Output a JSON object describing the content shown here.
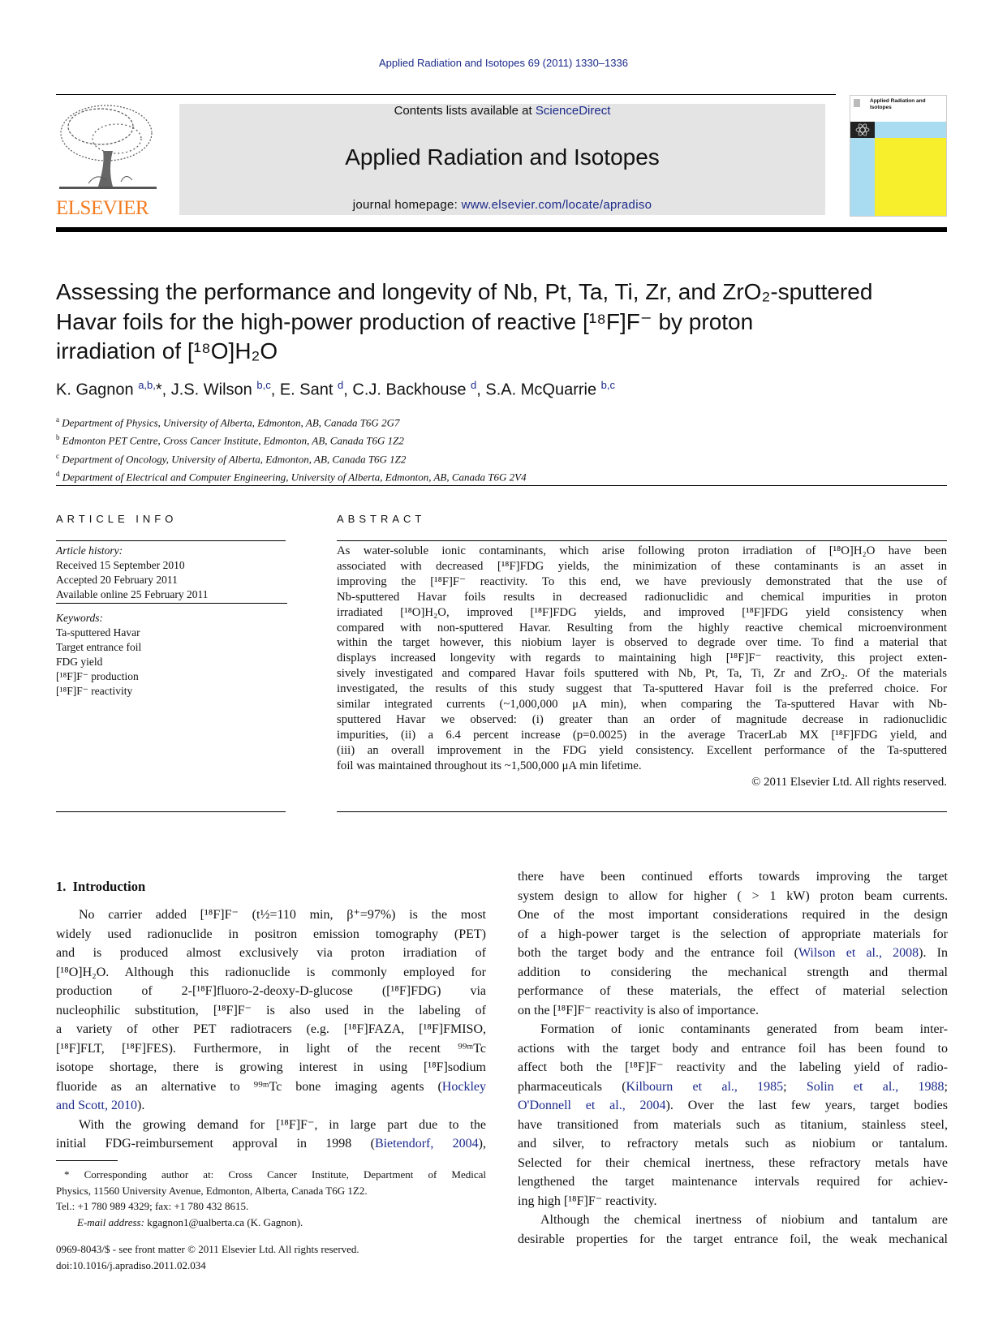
{
  "header": {
    "citation": "Applied Radiation and Isotopes 69 (2011) 1330–1336",
    "contents_prefix": "Contents lists available at ",
    "contents_link": "ScienceDirect",
    "journal_title": "Applied Radiation and Isotopes",
    "homepage_prefix": "journal homepage: ",
    "homepage_link": "www.elsevier.com/locate/apradiso",
    "publisher_logo": "ELSEVIER",
    "cover_title": "Applied Radiation and Isotopes",
    "link_color": "#1b2a8a",
    "logo_color": "#f47c20"
  },
  "article": {
    "title_lines": [
      "Assessing the performance and longevity of Nb, Pt, Ta, Ti, Zr, and ZrO₂-sputtered",
      "Havar foils for the high-power production of reactive [¹⁸F]F⁻ by proton",
      "irradiation of [¹⁸O]H₂O"
    ],
    "authors": [
      {
        "name": "K. Gagnon",
        "sup": "a,b,",
        "sep": "*, "
      },
      {
        "name": "J.S. Wilson",
        "sup": "b,c",
        "sep": ", "
      },
      {
        "name": "E. Sant",
        "sup": "d",
        "sep": ", "
      },
      {
        "name": "C.J. Backhouse",
        "sup": "d",
        "sep": ", "
      },
      {
        "name": "S.A. McQuarrie",
        "sup": "b,c",
        "sep": ""
      }
    ],
    "affiliations": [
      {
        "key": "a",
        "text": "Department of Physics, University of Alberta, Edmonton, AB, Canada T6G 2G7"
      },
      {
        "key": "b",
        "text": "Edmonton PET Centre, Cross Cancer Institute, Edmonton, AB, Canada T6G 1Z2"
      },
      {
        "key": "c",
        "text": "Department of Oncology, University of Alberta, Edmonton, AB, Canada T6G 1Z2"
      },
      {
        "key": "d",
        "text": "Department of Electrical and Computer Engineering, University of Alberta, Edmonton, AB, Canada T6G 2V4"
      }
    ]
  },
  "article_info": {
    "heading": "ARTICLE INFO",
    "history_label": "Article history:",
    "history": [
      "Received 15 September 2010",
      "Accepted 20 February 2011",
      "Available online 25 February 2011"
    ],
    "keywords_label": "Keywords:",
    "keywords": [
      "Ta-sputtered Havar",
      "Target entrance foil",
      "FDG yield",
      "[¹⁸F]F⁻ production",
      "[¹⁸F]F⁻ reactivity"
    ]
  },
  "abstract": {
    "heading": "ABSTRACT",
    "lines": [
      "As water-soluble ionic contaminants, which arise following proton irradiation of [¹⁸O]H₂O have been",
      "associated with decreased [¹⁸F]FDG yields, the minimization of these contaminants is an asset in",
      "improving the [¹⁸F]F⁻ reactivity. To this end, we have previously demonstrated that the use of",
      "Nb-sputtered Havar foils results in decreased radionuclidic and chemical impurities in proton",
      "irradiated [¹⁸O]H₂O, improved [¹⁸F]FDG yields, and improved [¹⁸F]FDG yield consistency when",
      "compared with non-sputtered Havar. Resulting from the highly reactive chemical microenvironment",
      "within the target however, this niobium layer is observed to degrade over time. To find a material that",
      "displays increased longevity with regards to maintaining high [¹⁸F]F⁻ reactivity, this project exten-",
      "sively investigated and compared Havar foils sputtered with Nb, Pt, Ta, Ti, Zr and ZrO₂. Of the materials",
      "investigated, the results of this study suggest that Ta-sputtered Havar foil is the preferred choice. For",
      "similar integrated currents (~1,000,000 μA min), when comparing the Ta-sputtered Havar with Nb-",
      "sputtered Havar we observed: (i) greater than an order of magnitude decrease in radionuclidic",
      "impurities, (ii) a 6.4 percent increase (p=0.0025) in the average TracerLab MX [¹⁸F]FDG yield, and",
      "(iii) an overall improvement in the FDG yield consistency. Excellent performance of the Ta-sputtered",
      "foil was maintained throughout its ~1,500,000 μA min lifetime."
    ],
    "copyright": "© 2011 Elsevier Ltd. All rights reserved."
  },
  "body": {
    "section_heading": "1.  Introduction",
    "left_paragraphs": [
      {
        "indent": true,
        "end": true,
        "lines": [
          "No carrier added [¹⁸F]F⁻ (t½=110 min, β⁺=97%) is the most",
          "widely used radionuclide in positron emission tomography (PET)",
          "and is produced almost exclusively via proton irradiation of",
          "[¹⁸O]H₂O. Although this radionuclide is commonly employed for",
          "production of 2-[¹⁸F]fluoro-2-deoxy-D-glucose ([¹⁸F]FDG) via",
          "nucleophilic substitution, [¹⁸F]F⁻ is also used in the labeling of",
          "a variety of other PET radiotracers (e.g. [¹⁸F]FAZA, [¹⁸F]FMISO,",
          "[¹⁸F]FLT, [¹⁸F]FES). Furthermore, in light of the recent ⁹⁹ᵐTc",
          "isotope shortage, there is growing interest in using [¹⁸F]sodium",
          [
            "fluoride as an alternative to ⁹⁹ᵐTc bone imaging agents (",
            {
              "link": "Hockley"
            }
          ],
          [
            {
              "link": "and Scott, 2010"
            },
            ")."
          ]
        ]
      },
      {
        "indent": true,
        "end": false,
        "lines": [
          "With the growing demand for [¹⁸F]F⁻, in large part due to the",
          [
            "initial FDG-reimbursement approval in 1998 (",
            {
              "link": "Bietendorf, 2004"
            },
            "),"
          ]
        ]
      }
    ],
    "right_paragraphs": [
      {
        "indent": false,
        "end": true,
        "lines": [
          "there have been continued efforts towards improving the target",
          "system design to allow for higher ( > 1 kW) proton beam currents.",
          "One of the most important considerations required in the design",
          "of a high-power target is the selection of appropriate materials for",
          [
            "both the target body and the entrance foil (",
            {
              "link": "Wilson et al., 2008"
            },
            "). In"
          ],
          "addition to considering the mechanical strength and thermal",
          "performance of these materials, the effect of material selection",
          "on the [¹⁸F]F⁻ reactivity is also of importance."
        ]
      },
      {
        "indent": true,
        "end": true,
        "lines": [
          "Formation of ionic contaminants generated from beam inter-",
          "actions with the target body and entrance foil has been found to",
          "affect both the [¹⁸F]F⁻ reactivity and the labeling yield of radio-",
          [
            "pharmaceuticals (",
            {
              "link": "Kilbourn et al., 1985"
            },
            "; ",
            {
              "link": "Solin et al., 1988"
            },
            ";"
          ],
          [
            {
              "link": "O'Donnell et al., 2004"
            },
            "). Over the last few years, target bodies"
          ],
          "have transitioned from materials such as titanium, stainless steel,",
          "and silver, to refractory metals such as niobium or tantalum.",
          "Selected for their chemical inertness, these refractory metals have",
          "lengthened the target maintenance intervals required for achiev-",
          "ing high [¹⁸F]F⁻ reactivity."
        ]
      },
      {
        "indent": true,
        "end": false,
        "lines": [
          "Although the chemical inertness of niobium and tantalum are",
          "desirable properties for the target entrance foil, the weak mechanical"
        ]
      }
    ]
  },
  "footnote": {
    "lines": [
      "* Corresponding author at: Cross Cancer Institute, Department of Medical",
      "Physics, 11560 University Avenue, Edmonton, Alberta, Canada T6G 1Z2."
    ],
    "tel": "Tel.: +1 780 989 4329; fax: +1 780 432 8615.",
    "email_label": "E-mail address:",
    "email": " kgagnon1@ualberta.ca (K. Gagnon)."
  },
  "bottom": {
    "issn": "0969-8043/$ - see front matter © 2011 Elsevier Ltd. All rights reserved.",
    "doi": "doi:10.1016/j.apradiso.2011.02.034"
  }
}
